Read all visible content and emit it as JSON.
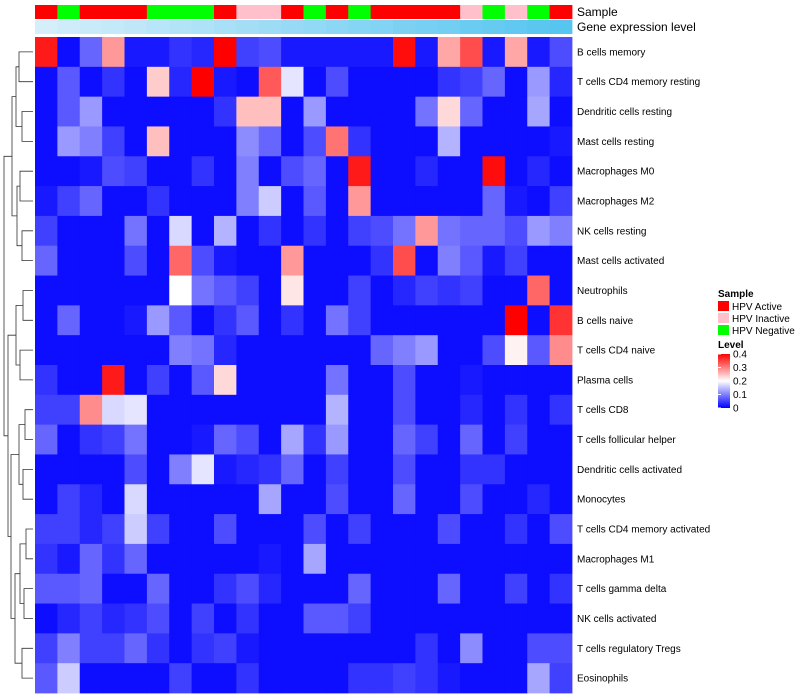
{
  "chart_data": {
    "type": "heatmap",
    "title": "",
    "xlabel": "",
    "ylabel": "",
    "column_annotations": {
      "sample_title": "Sample",
      "expression_title": "Gene expression level",
      "sample": [
        "HPV Active",
        "HPV Negative",
        "HPV Active",
        "HPV Active",
        "HPV Active",
        "HPV Negative",
        "HPV Negative",
        "HPV Negative",
        "HPV Active",
        "HPV Inactive",
        "HPV Inactive",
        "HPV Active",
        "HPV Negative",
        "HPV Active",
        "HPV Negative",
        "HPV Active",
        "HPV Active",
        "HPV Active",
        "HPV Active",
        "HPV Inactive",
        "HPV Negative",
        "HPV Inactive",
        "HPV Negative",
        "HPV Active"
      ],
      "expression": [
        0.0,
        0.04,
        0.09,
        0.13,
        0.17,
        0.22,
        0.26,
        0.3,
        0.35,
        0.39,
        0.43,
        0.48,
        0.52,
        0.57,
        0.61,
        0.65,
        0.7,
        0.74,
        0.78,
        0.83,
        0.87,
        0.91,
        0.96,
        1.0
      ]
    },
    "rows": [
      "B cells memory",
      "T cells CD4 memory resting",
      "Dendritic cells resting",
      "Mast cells resting",
      "Macrophages M0",
      "Macrophages M2",
      "NK cells resting",
      "Mast cells activated",
      "Neutrophils",
      "B cells naive",
      "T cells CD4 naive",
      "Plasma cells",
      "T cells CD8",
      "T cells follicular helper",
      "Dendritic cells activated",
      "Monocytes",
      "T cells CD4 memory activated",
      "Macrophages M1",
      "T cells gamma delta",
      "NK cells activated",
      "T cells regulatory  Tregs",
      "Eosinophils"
    ],
    "values": [
      [
        0.38,
        0.01,
        0.08,
        0.28,
        0.02,
        0.02,
        0.04,
        0.03,
        0.4,
        0.05,
        0.06,
        0.02,
        0.02,
        0.02,
        0.02,
        0.02,
        0.39,
        0.02,
        0.27,
        0.34,
        0.02,
        0.27,
        0.02,
        0.06
      ],
      [
        0.01,
        0.07,
        0.01,
        0.04,
        0.01,
        0.24,
        0.03,
        0.4,
        0.02,
        0.01,
        0.33,
        0.18,
        0.01,
        0.06,
        0.01,
        0.01,
        0.01,
        0.01,
        0.04,
        0.05,
        0.08,
        0.01,
        0.12,
        0.03
      ],
      [
        0.01,
        0.07,
        0.12,
        0.01,
        0.01,
        0.01,
        0.01,
        0.01,
        0.04,
        0.25,
        0.25,
        0.01,
        0.12,
        0.01,
        0.01,
        0.01,
        0.01,
        0.09,
        0.23,
        0.08,
        0.01,
        0.01,
        0.13,
        0.01
      ],
      [
        0.01,
        0.12,
        0.1,
        0.05,
        0.01,
        0.25,
        0.01,
        0.01,
        0.01,
        0.11,
        0.08,
        0.01,
        0.06,
        0.31,
        0.04,
        0.01,
        0.01,
        0.01,
        0.14,
        0.01,
        0.01,
        0.01,
        0.01,
        0.02
      ],
      [
        0.01,
        0.01,
        0.02,
        0.06,
        0.05,
        0.01,
        0.01,
        0.04,
        0.01,
        0.1,
        0.01,
        0.06,
        0.08,
        0.01,
        0.38,
        0.01,
        0.01,
        0.03,
        0.01,
        0.01,
        0.39,
        0.01,
        0.03,
        0.01
      ],
      [
        0.02,
        0.05,
        0.08,
        0.01,
        0.01,
        0.04,
        0.01,
        0.01,
        0.01,
        0.1,
        0.16,
        0.01,
        0.07,
        0.01,
        0.28,
        0.01,
        0.01,
        0.01,
        0.01,
        0.01,
        0.08,
        0.02,
        0.01,
        0.05
      ],
      [
        0.05,
        0.01,
        0.01,
        0.01,
        0.09,
        0.01,
        0.17,
        0.01,
        0.14,
        0.01,
        0.04,
        0.01,
        0.04,
        0.01,
        0.05,
        0.06,
        0.09,
        0.28,
        0.09,
        0.08,
        0.08,
        0.06,
        0.12,
        0.1
      ],
      [
        0.08,
        0.01,
        0.01,
        0.01,
        0.06,
        0.01,
        0.32,
        0.06,
        0.02,
        0.01,
        0.01,
        0.28,
        0.01,
        0.01,
        0.01,
        0.04,
        0.34,
        0.01,
        0.1,
        0.07,
        0.02,
        0.05,
        0.01,
        0.01
      ],
      [
        0.01,
        0.01,
        0.01,
        0.01,
        0.01,
        0.01,
        0.2,
        0.09,
        0.07,
        0.05,
        0.01,
        0.22,
        0.01,
        0.01,
        0.05,
        0.01,
        0.03,
        0.05,
        0.04,
        0.05,
        0.01,
        0.01,
        0.32,
        0.01
      ],
      [
        0.01,
        0.08,
        0.01,
        0.01,
        0.02,
        0.12,
        0.07,
        0.01,
        0.04,
        0.07,
        0.01,
        0.04,
        0.01,
        0.09,
        0.05,
        0.01,
        0.01,
        0.01,
        0.01,
        0.01,
        0.01,
        0.4,
        0.01,
        0.36
      ],
      [
        0.01,
        0.01,
        0.01,
        0.01,
        0.01,
        0.01,
        0.1,
        0.09,
        0.03,
        0.01,
        0.01,
        0.01,
        0.01,
        0.01,
        0.01,
        0.08,
        0.1,
        0.12,
        0.01,
        0.01,
        0.06,
        0.21,
        0.07,
        0.29
      ],
      [
        0.04,
        0.01,
        0.01,
        0.38,
        0.01,
        0.05,
        0.01,
        0.07,
        0.23,
        0.01,
        0.01,
        0.01,
        0.01,
        0.09,
        0.01,
        0.01,
        0.06,
        0.01,
        0.01,
        0.02,
        0.01,
        0.01,
        0.01,
        0.01
      ],
      [
        0.05,
        0.05,
        0.29,
        0.17,
        0.18,
        0.01,
        0.01,
        0.01,
        0.01,
        0.01,
        0.01,
        0.01,
        0.01,
        0.14,
        0.01,
        0.01,
        0.06,
        0.01,
        0.01,
        0.03,
        0.01,
        0.04,
        0.01,
        0.04
      ],
      [
        0.08,
        0.01,
        0.04,
        0.05,
        0.09,
        0.01,
        0.01,
        0.02,
        0.08,
        0.06,
        0.01,
        0.13,
        0.04,
        0.12,
        0.01,
        0.01,
        0.08,
        0.05,
        0.01,
        0.08,
        0.01,
        0.05,
        0.01,
        0.01
      ],
      [
        0.01,
        0.01,
        0.01,
        0.01,
        0.06,
        0.01,
        0.1,
        0.18,
        0.02,
        0.03,
        0.04,
        0.08,
        0.01,
        0.05,
        0.01,
        0.01,
        0.06,
        0.01,
        0.01,
        0.04,
        0.04,
        0.01,
        0.01,
        0.01
      ],
      [
        0.01,
        0.05,
        0.03,
        0.01,
        0.17,
        0.01,
        0.01,
        0.01,
        0.01,
        0.01,
        0.13,
        0.01,
        0.01,
        0.06,
        0.01,
        0.01,
        0.08,
        0.01,
        0.01,
        0.06,
        0.01,
        0.01,
        0.03,
        0.01
      ],
      [
        0.05,
        0.05,
        0.03,
        0.05,
        0.16,
        0.05,
        0.01,
        0.01,
        0.06,
        0.01,
        0.01,
        0.01,
        0.06,
        0.01,
        0.05,
        0.01,
        0.01,
        0.01,
        0.06,
        0.01,
        0.01,
        0.04,
        0.01,
        0.06
      ],
      [
        0.04,
        0.02,
        0.08,
        0.04,
        0.08,
        0.01,
        0.01,
        0.01,
        0.01,
        0.01,
        0.02,
        0.01,
        0.13,
        0.01,
        0.01,
        0.01,
        0.01,
        0.01,
        0.01,
        0.01,
        0.01,
        0.01,
        0.01,
        0.01
      ],
      [
        0.07,
        0.07,
        0.08,
        0.01,
        0.01,
        0.08,
        0.01,
        0.01,
        0.04,
        0.06,
        0.03,
        0.01,
        0.01,
        0.01,
        0.08,
        0.01,
        0.01,
        0.01,
        0.08,
        0.01,
        0.01,
        0.05,
        0.01,
        0.04
      ],
      [
        0.01,
        0.03,
        0.05,
        0.03,
        0.04,
        0.06,
        0.01,
        0.05,
        0.01,
        0.04,
        0.01,
        0.01,
        0.07,
        0.07,
        0.05,
        0.01,
        0.01,
        0.01,
        0.01,
        0.01,
        0.01,
        0.01,
        0.01,
        0.01
      ],
      [
        0.05,
        0.1,
        0.05,
        0.05,
        0.08,
        0.04,
        0.01,
        0.04,
        0.05,
        0.02,
        0.01,
        0.01,
        0.01,
        0.01,
        0.01,
        0.01,
        0.01,
        0.04,
        0.01,
        0.11,
        0.01,
        0.01,
        0.06,
        0.06
      ],
      [
        0.07,
        0.16,
        0.01,
        0.01,
        0.01,
        0.01,
        0.05,
        0.01,
        0.01,
        0.04,
        0.01,
        0.01,
        0.01,
        0.01,
        0.04,
        0.04,
        0.05,
        0.04,
        0.02,
        0.01,
        0.01,
        0.01,
        0.13,
        0.05
      ]
    ],
    "color_scale": {
      "low": "#0000FF",
      "mid": "#FFFFFF",
      "high": "#FF0000",
      "range": [
        0,
        0.4
      ],
      "mid_value": 0.2
    },
    "expression_colors": {
      "low": "#D4EEFA",
      "high": "#56C5F0"
    },
    "legend": {
      "sample_title": "Sample",
      "sample_entries": [
        {
          "label": "HPV Active",
          "color": "#FF0000"
        },
        {
          "label": "HPV Inactive",
          "color": "#FFC0CB"
        },
        {
          "label": "HPV Negative",
          "color": "#00FF00"
        }
      ],
      "level_title": "Level",
      "level_ticks": [
        0.4,
        0.3,
        0.2,
        0.1,
        0
      ],
      "level_tick_labels": [
        "0.4",
        "0.3",
        "0.2",
        "0.1",
        "0"
      ]
    }
  }
}
